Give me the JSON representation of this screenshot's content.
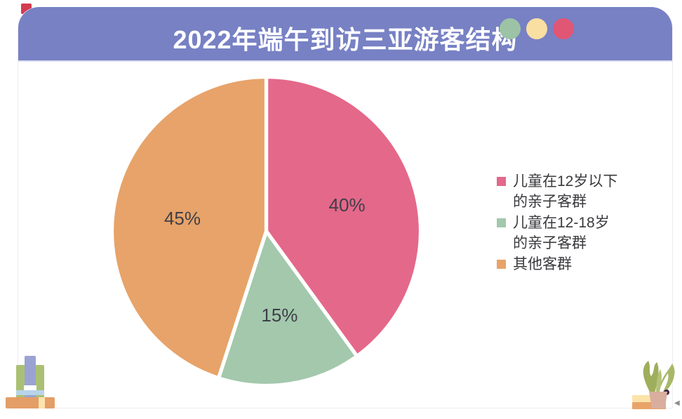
{
  "header": {
    "title": "2022年端午到访三亚游客结构",
    "bar_color": "#7781c4",
    "dots": [
      {
        "name": "green-dot",
        "color": "#9cc3a5"
      },
      {
        "name": "yellow-dot",
        "color": "#fadfa3"
      },
      {
        "name": "pink-dot",
        "color": "#e15674"
      }
    ]
  },
  "chart_data": {
    "type": "pie",
    "title": "2022年端午到访三亚游客结构",
    "start_angle_deg": 0,
    "direction": "clockwise",
    "legend_position": "right",
    "slices": [
      {
        "label": "儿童在12岁以下的亲子客群",
        "value": 40,
        "display": "40%",
        "color": "#e4688a"
      },
      {
        "label": "儿童在12-18岁的亲子客群",
        "value": 15,
        "display": "15%",
        "color": "#a3c8ac"
      },
      {
        "label": "其他客群",
        "value": 45,
        "display": "45%",
        "color": "#e7a369"
      }
    ],
    "legend": [
      {
        "label": "儿童在12岁以下\n的亲子客群",
        "color": "#e4688a"
      },
      {
        "label": "儿童在12-18岁\n的亲子客群",
        "color": "#a3c8ac"
      },
      {
        "label": "其他客群",
        "color": "#e7a369"
      }
    ]
  },
  "decorations": {
    "scroll_arrow_glyph": "◀"
  }
}
